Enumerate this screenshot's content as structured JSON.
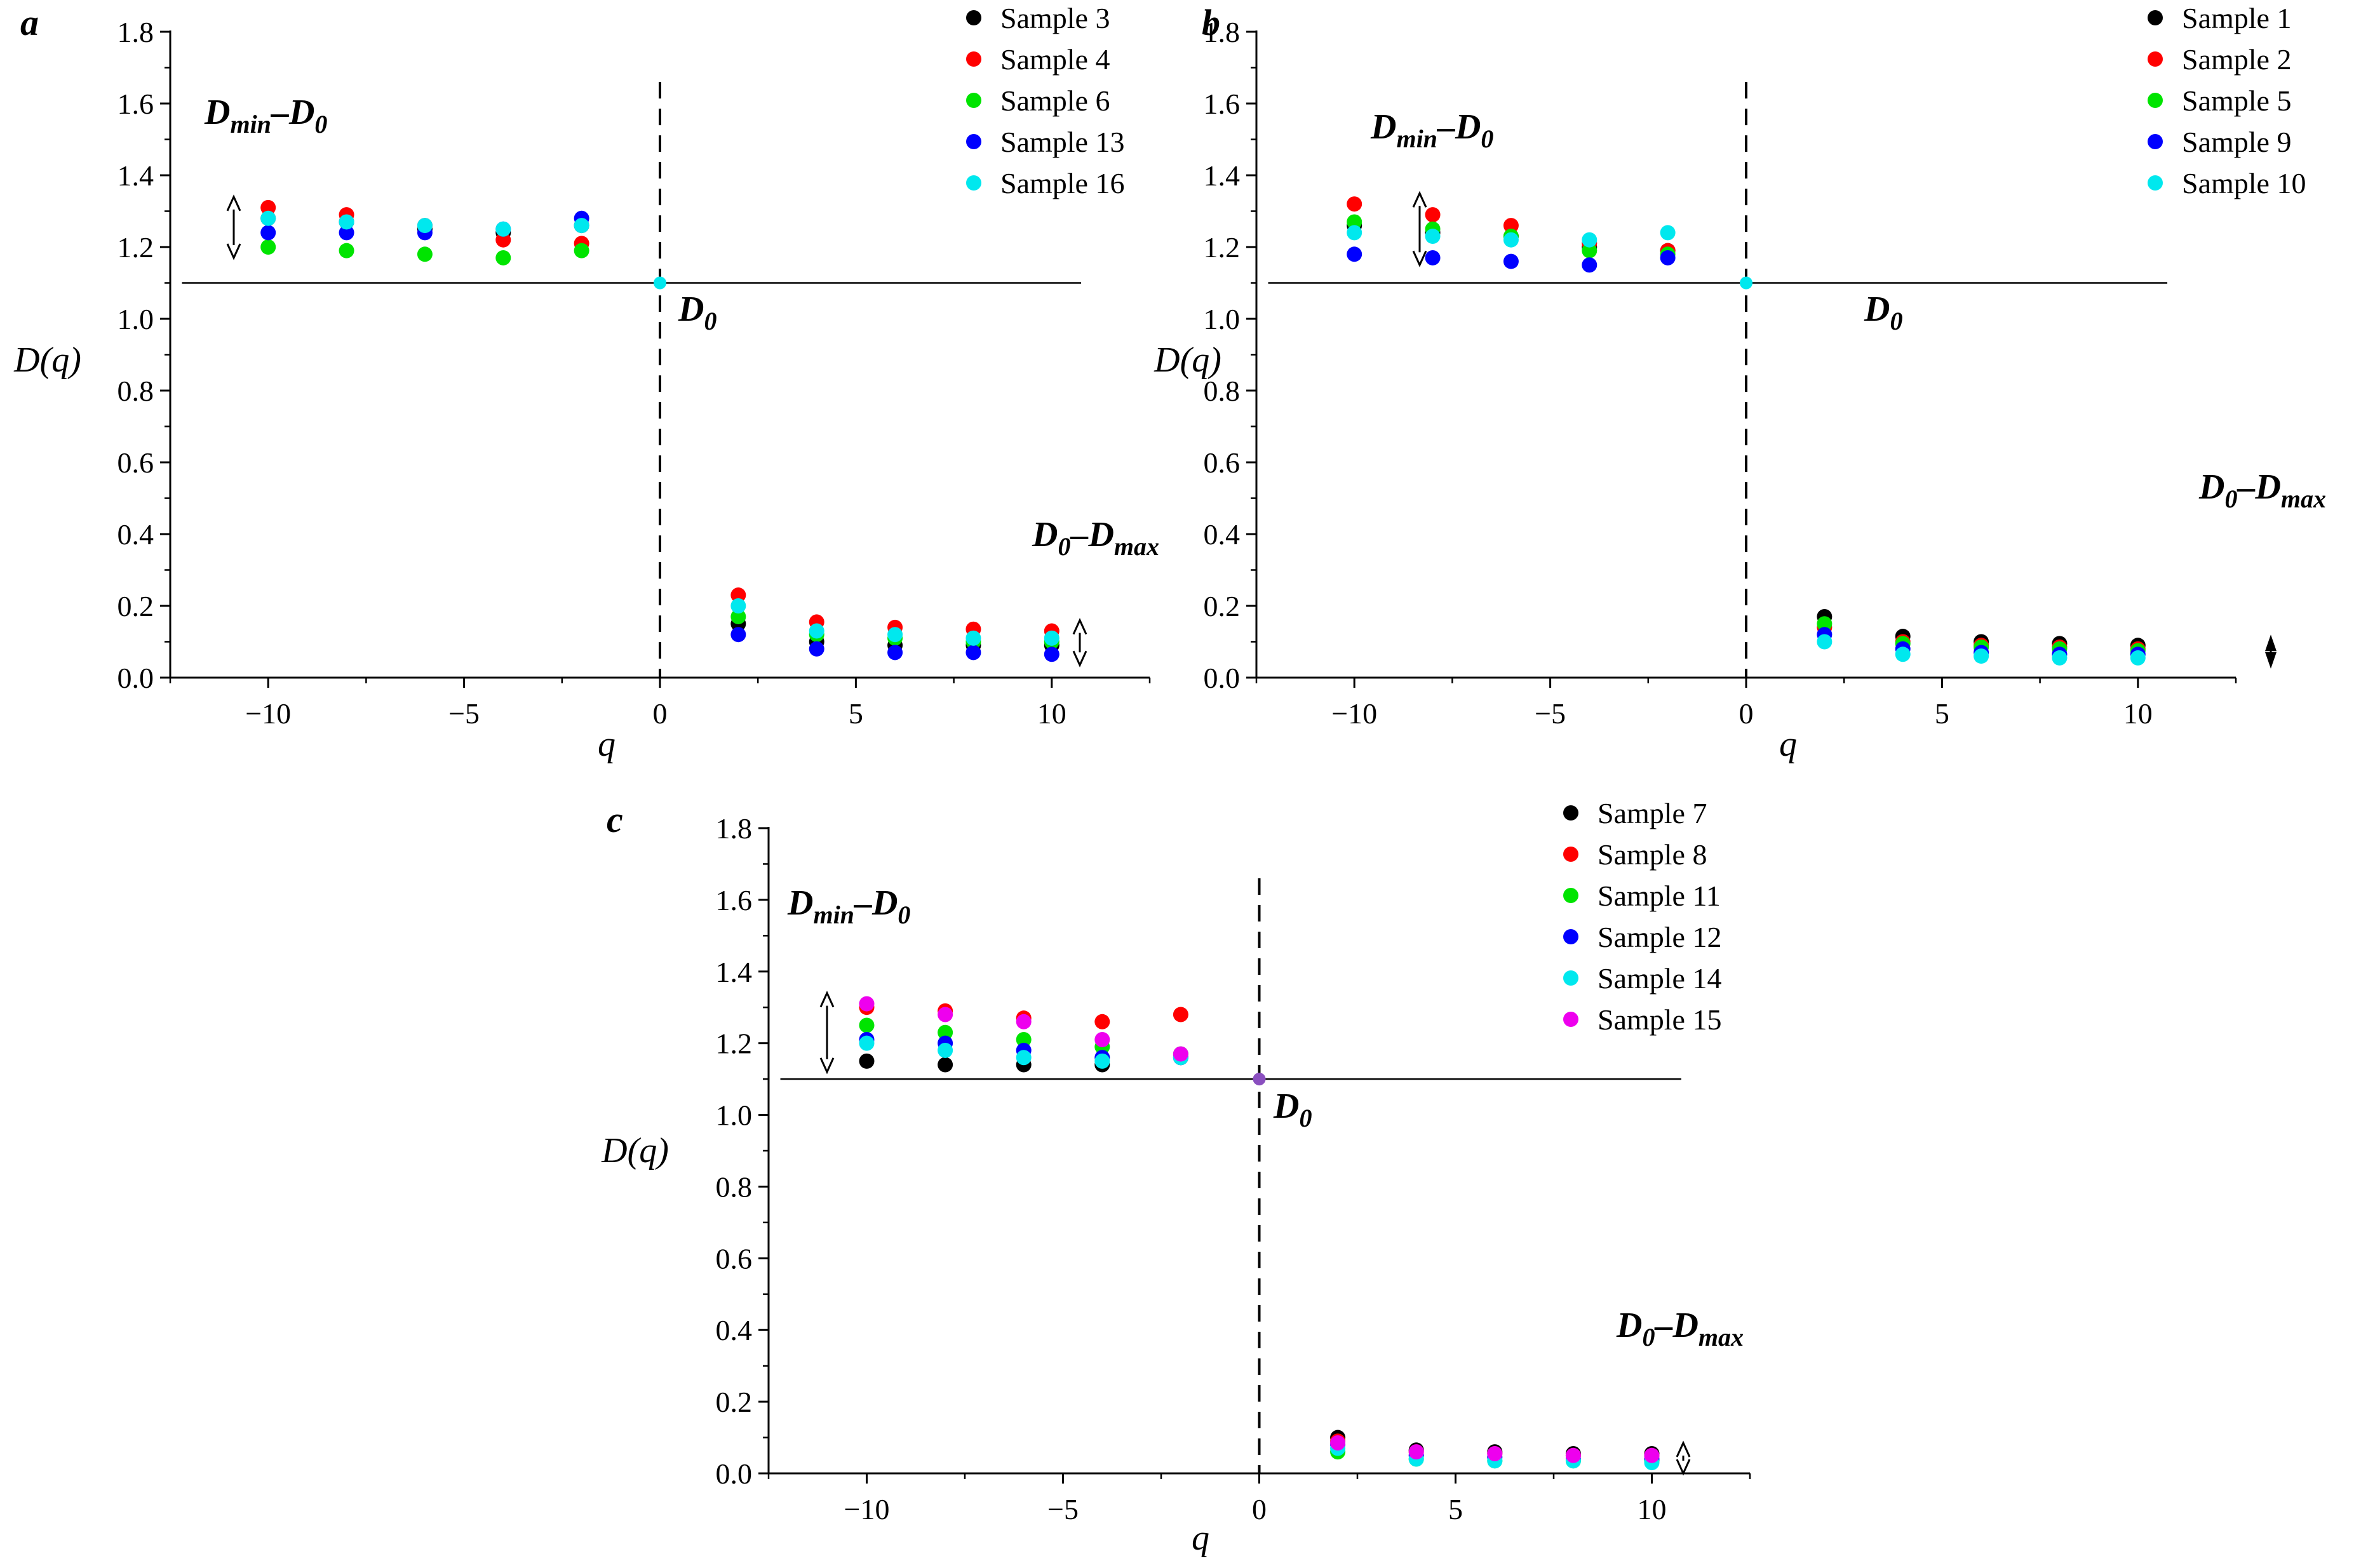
{
  "chart_data": [
    {
      "type": "scatter",
      "panel_label": "a",
      "xlabel": "q",
      "ylabel": "D(q)",
      "xlim": [
        -12.5,
        12.5
      ],
      "ylim": [
        0,
        1.8
      ],
      "xticks": [
        -10,
        -5,
        0,
        5,
        10
      ],
      "xtick_labels": [
        "−10",
        "−5",
        "0",
        "5",
        "10"
      ],
      "yticks": [
        0,
        0.2,
        0.4,
        0.6,
        0.8,
        1.0,
        1.2,
        1.4,
        1.6,
        1.8
      ],
      "ytick_labels": [
        "0.0",
        "0.2",
        "0.4",
        "0.6",
        "0.8",
        "1.0",
        "1.2",
        "1.4",
        "1.6",
        "1.8"
      ],
      "d0_value": 1.1,
      "reference_line_x": 0,
      "annotations": {
        "left_main": "D",
        "left_sub1": "min",
        "left_mid": "–D",
        "left_sub2": "0",
        "d0_main": "D",
        "d0_sub": "0",
        "right_main": "D",
        "right_sub1": "0",
        "right_mid": "–D",
        "right_sub2": "max"
      },
      "x": [
        -10,
        -8,
        -6,
        -4,
        -2,
        0,
        2,
        4,
        6,
        8,
        10
      ],
      "series": [
        {
          "name": "Sample 3",
          "color": "#000000",
          "values": [
            1.28,
            1.27,
            1.25,
            1.24,
            1.26,
            1.1,
            0.15,
            0.1,
            0.09,
            0.09,
            0.09
          ]
        },
        {
          "name": "Sample 4",
          "color": "#ff0000",
          "values": [
            1.31,
            1.29,
            1.26,
            1.22,
            1.21,
            1.1,
            0.23,
            0.155,
            0.14,
            0.135,
            0.13
          ]
        },
        {
          "name": "Sample 6",
          "color": "#00e400",
          "values": [
            1.2,
            1.19,
            1.18,
            1.17,
            1.19,
            1.1,
            0.17,
            0.12,
            0.11,
            0.1,
            0.1
          ]
        },
        {
          "name": "Sample 13",
          "color": "#0000ff",
          "values": [
            1.24,
            1.24,
            1.24,
            1.25,
            1.28,
            1.1,
            0.12,
            0.08,
            0.07,
            0.07,
            0.065
          ]
        },
        {
          "name": "Sample 16",
          "color": "#00e8ee",
          "values": [
            1.28,
            1.27,
            1.26,
            1.25,
            1.26,
            1.1,
            0.2,
            0.13,
            0.12,
            0.11,
            0.11
          ]
        }
      ]
    },
    {
      "type": "scatter",
      "panel_label": "b",
      "xlabel": "q",
      "ylabel": "D(q)",
      "xlim": [
        -12.5,
        12.5
      ],
      "ylim": [
        0,
        1.8
      ],
      "xticks": [
        -10,
        -5,
        0,
        5,
        10
      ],
      "xtick_labels": [
        "−10",
        "−5",
        "0",
        "5",
        "10"
      ],
      "yticks": [
        0,
        0.2,
        0.4,
        0.6,
        0.8,
        1.0,
        1.2,
        1.4,
        1.6,
        1.8
      ],
      "ytick_labels": [
        "0.0",
        "0.2",
        "0.4",
        "0.6",
        "0.8",
        "1.0",
        "1.2",
        "1.4",
        "1.6",
        "1.8"
      ],
      "d0_value": 1.1,
      "reference_line_x": 0,
      "annotations": {
        "left_main": "D",
        "left_sub1": "min",
        "left_mid": "–D",
        "left_sub2": "0",
        "d0_main": "D",
        "d0_sub": "0",
        "right_main": "D",
        "right_sub1": "0",
        "right_mid": "–D",
        "right_sub2": "max"
      },
      "x": [
        -10,
        -8,
        -6,
        -4,
        -2,
        0,
        2,
        4,
        6,
        8,
        10
      ],
      "series": [
        {
          "name": "Sample 1",
          "color": "#000000",
          "values": [
            1.26,
            1.24,
            1.23,
            1.2,
            1.19,
            1.1,
            0.17,
            0.115,
            0.1,
            0.095,
            0.09
          ]
        },
        {
          "name": "Sample 2",
          "color": "#ff0000",
          "values": [
            1.32,
            1.29,
            1.26,
            1.21,
            1.19,
            1.1,
            0.14,
            0.1,
            0.09,
            0.085,
            0.08
          ]
        },
        {
          "name": "Sample 5",
          "color": "#00e400",
          "values": [
            1.27,
            1.25,
            1.23,
            1.19,
            1.18,
            1.1,
            0.15,
            0.095,
            0.085,
            0.08,
            0.075
          ]
        },
        {
          "name": "Sample 9",
          "color": "#0000ff",
          "values": [
            1.18,
            1.17,
            1.16,
            1.15,
            1.17,
            1.1,
            0.12,
            0.08,
            0.07,
            0.065,
            0.065
          ]
        },
        {
          "name": "Sample 10",
          "color": "#00e8ee",
          "values": [
            1.24,
            1.23,
            1.22,
            1.22,
            1.24,
            1.1,
            0.1,
            0.065,
            0.06,
            0.055,
            0.055
          ]
        }
      ]
    },
    {
      "type": "scatter",
      "panel_label": "c",
      "xlabel": "q",
      "ylabel": "D(q)",
      "xlim": [
        -12.5,
        12.5
      ],
      "ylim": [
        0,
        1.8
      ],
      "xticks": [
        -10,
        -5,
        0,
        5,
        10
      ],
      "xtick_labels": [
        "−10",
        "−5",
        "0",
        "5",
        "10"
      ],
      "yticks": [
        0,
        0.2,
        0.4,
        0.6,
        0.8,
        1.0,
        1.2,
        1.4,
        1.6,
        1.8
      ],
      "ytick_labels": [
        "0.0",
        "0.2",
        "0.4",
        "0.6",
        "0.8",
        "1.0",
        "1.2",
        "1.4",
        "1.6",
        "1.8"
      ],
      "d0_value": 1.1,
      "reference_line_x": 0,
      "annotations": {
        "left_main": "D",
        "left_sub1": "min",
        "left_mid": "–D",
        "left_sub2": "0",
        "d0_main": "D",
        "d0_sub": "0",
        "right_main": "D",
        "right_sub1": "0",
        "right_mid": "–D",
        "right_sub2": "max"
      },
      "x": [
        -10,
        -8,
        -6,
        -4,
        -2,
        0,
        2,
        4,
        6,
        8,
        10
      ],
      "series": [
        {
          "name": "Sample 7",
          "color": "#000000",
          "values": [
            1.15,
            1.14,
            1.14,
            1.14,
            1.16,
            1.1,
            0.1,
            0.065,
            0.06,
            0.055,
            0.055
          ]
        },
        {
          "name": "Sample 8",
          "color": "#ff0000",
          "values": [
            1.3,
            1.29,
            1.27,
            1.26,
            1.28,
            1.1,
            0.09,
            0.06,
            0.055,
            0.05,
            0.05
          ]
        },
        {
          "name": "Sample 11",
          "color": "#00e400",
          "values": [
            1.25,
            1.23,
            1.21,
            1.19,
            1.17,
            1.1,
            0.06,
            0.04,
            0.035,
            0.035,
            0.035
          ]
        },
        {
          "name": "Sample 12",
          "color": "#0000ff",
          "values": [
            1.21,
            1.2,
            1.18,
            1.16,
            1.16,
            1.1,
            0.08,
            0.05,
            0.045,
            0.04,
            0.04
          ]
        },
        {
          "name": "Sample 14",
          "color": "#00e8ee",
          "values": [
            1.2,
            1.18,
            1.16,
            1.15,
            1.16,
            1.1,
            0.07,
            0.04,
            0.035,
            0.035,
            0.03
          ]
        },
        {
          "name": "Sample 15",
          "color": "#ee00ee",
          "values": [
            1.31,
            1.28,
            1.26,
            1.21,
            1.17,
            1.1,
            0.085,
            0.06,
            0.055,
            0.05,
            0.05
          ]
        }
      ]
    }
  ]
}
